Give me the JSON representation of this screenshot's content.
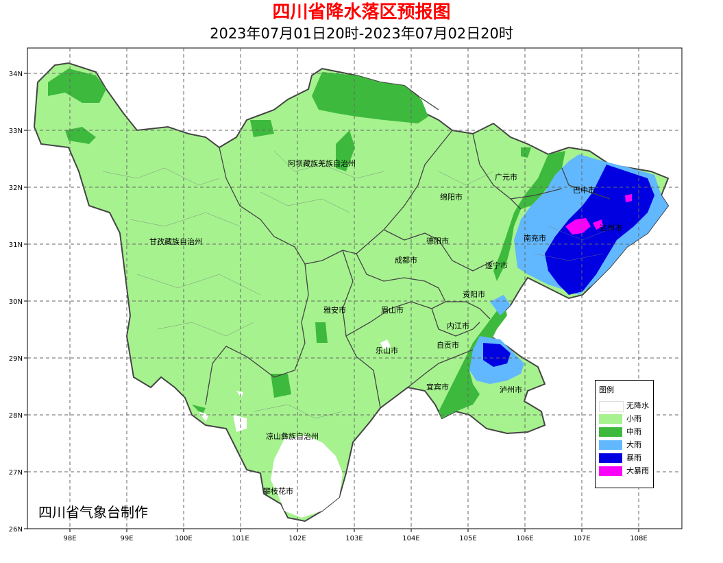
{
  "title": "四川省降水落区预报图",
  "subtitle": "2023年07月01日20时-2023年07月02日20时",
  "title_color": "#ff0000",
  "credit": "四川省气象台制作",
  "lat_labels": [
    "34N",
    "33N",
    "32N",
    "31N",
    "30N",
    "29N",
    "28N",
    "27N",
    "26N"
  ],
  "lon_labels": [
    "98E",
    "99E",
    "100E",
    "101E",
    "102E",
    "103E",
    "104E",
    "105E",
    "106E",
    "107E",
    "108E"
  ],
  "legend": {
    "title": "图例",
    "items": [
      {
        "label": "无降水",
        "color": "#ffffff"
      },
      {
        "label": "小雨",
        "color": "#a6f28f"
      },
      {
        "label": "中雨",
        "color": "#3dba3d"
      },
      {
        "label": "大雨",
        "color": "#61b8ff"
      },
      {
        "label": "暴雨",
        "color": "#0000e1"
      },
      {
        "label": "大暴雨",
        "color": "#fa00fa"
      }
    ]
  },
  "regions": {
    "aba": "阿坝藏族羌族自治州",
    "ganzi": "甘孜藏族自治州",
    "liangshan": "凉山彝族自治州",
    "panzhihua": "攀枝花市",
    "guangyuan": "广元市",
    "bazhong": "巴中市",
    "mianyang": "绵阳市",
    "dazhou": "达州市",
    "deyang": "德阳市",
    "nanchong": "南充市",
    "chengdu": "成都市",
    "suining": "遂宁市",
    "ziyang": "资阳市",
    "yaan": "雅安市",
    "meishan": "眉山市",
    "neijiang": "内江市",
    "leshan": "乐山市",
    "zigong": "自贡市",
    "yibin": "宜宾市",
    "luzhou": "泸州市"
  }
}
